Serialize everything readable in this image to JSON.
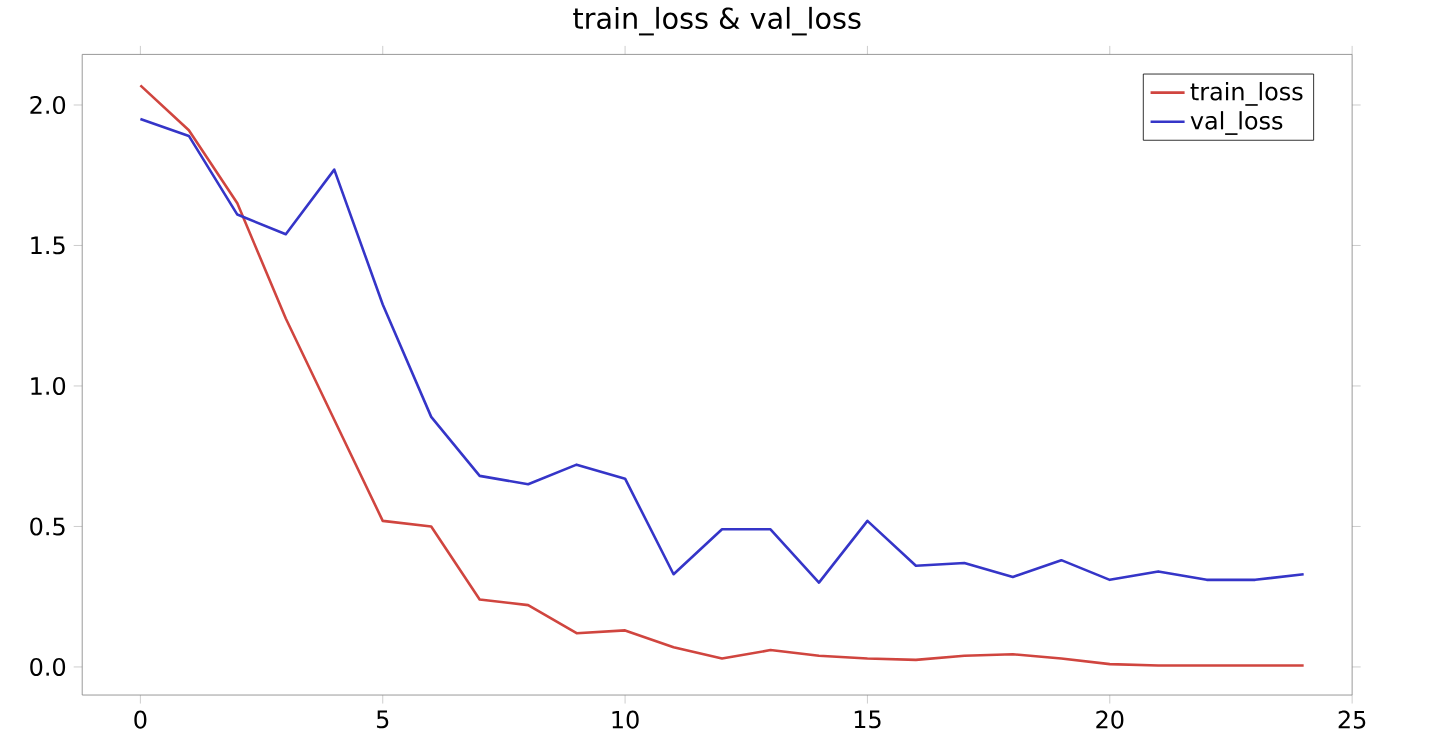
{
  "chart_data": {
    "type": "line",
    "title": "train_loss & val_loss",
    "x": [
      0,
      1,
      2,
      3,
      4,
      5,
      6,
      7,
      8,
      9,
      10,
      11,
      12,
      13,
      14,
      15,
      16,
      17,
      18,
      19,
      20,
      21,
      22,
      23,
      24
    ],
    "series": [
      {
        "name": "train_loss",
        "color": "#d0453f",
        "values": [
          2.07,
          1.91,
          1.65,
          1.24,
          0.88,
          0.52,
          0.5,
          0.24,
          0.22,
          0.12,
          0.13,
          0.07,
          0.03,
          0.06,
          0.04,
          0.03,
          0.025,
          0.04,
          0.045,
          0.03,
          0.01,
          0.005,
          0.005,
          0.005,
          0.005
        ]
      },
      {
        "name": "val_loss",
        "color": "#3535c8",
        "values": [
          1.95,
          1.89,
          1.61,
          1.54,
          1.77,
          1.29,
          0.89,
          0.68,
          0.65,
          0.72,
          0.67,
          0.33,
          0.49,
          0.49,
          0.3,
          0.52,
          0.36,
          0.37,
          0.32,
          0.38,
          0.31,
          0.34,
          0.31,
          0.31,
          0.33
        ]
      }
    ],
    "xlim": [
      -1.2,
      25
    ],
    "ylim": [
      -0.1,
      2.18
    ],
    "xticks": [
      0,
      5,
      10,
      15,
      20,
      25
    ],
    "yticks": [
      {
        "value": 0,
        "label": "0.0"
      },
      {
        "value": 0.5,
        "label": "0.5"
      },
      {
        "value": 1,
        "label": "1.0"
      },
      {
        "value": 1.5,
        "label": "1.5"
      },
      {
        "value": 2,
        "label": "2.0"
      }
    ],
    "legend": "top right",
    "grid": false,
    "marker": "none",
    "line_style": "solid"
  }
}
